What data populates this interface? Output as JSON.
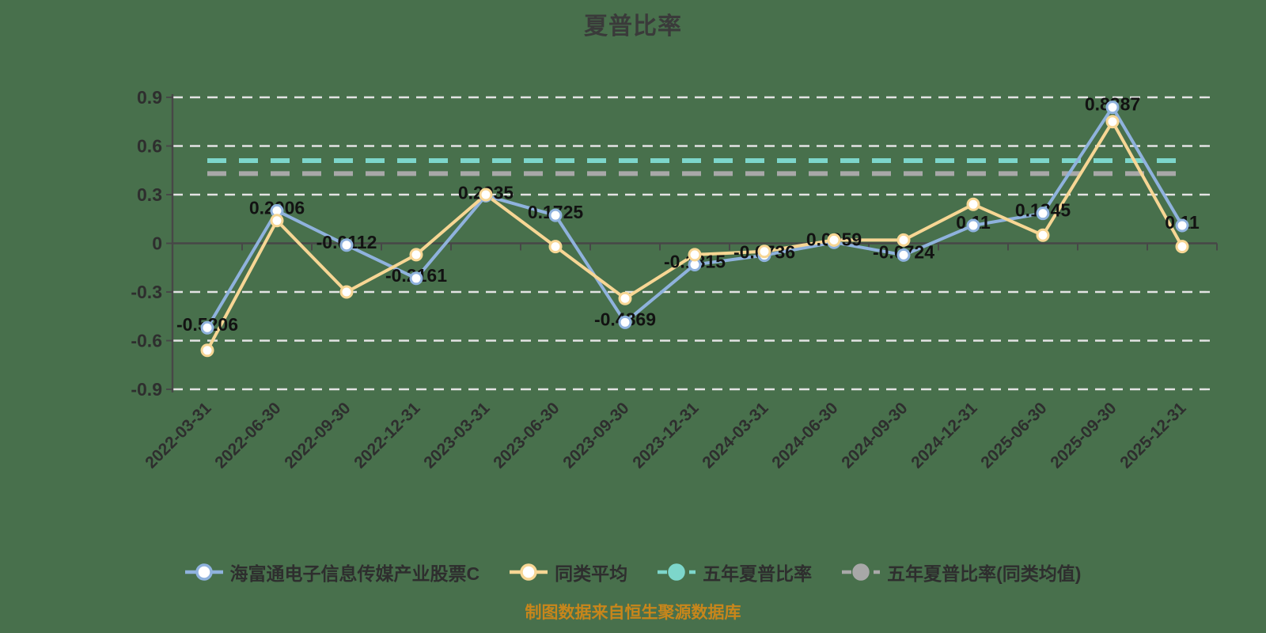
{
  "title": "夏普比率",
  "source_note": "制图数据来自恒生聚源数据库",
  "colors": {
    "background": "#48704C",
    "title_text": "#3A3A3A",
    "axis": "#474747",
    "grid": "#E3E3E3",
    "data_label": "#121212",
    "source_text": "#C8861B",
    "fund_line": "#8FB2DD",
    "peer_line": "#F7D694",
    "five_year_line": "#7DD6CB",
    "five_year_peer_line": "#A8A8A8"
  },
  "chart_data": {
    "type": "line",
    "title": "夏普比率",
    "categories": [
      "2022-03-31",
      "2022-06-30",
      "2022-09-30",
      "2022-12-31",
      "2023-03-31",
      "2023-06-30",
      "2023-09-30",
      "2023-12-31",
      "2024-03-31",
      "2024-06-30",
      "2024-09-30",
      "2024-12-31",
      "2025-06-30",
      "2025-09-30",
      "2025-12-31"
    ],
    "series": [
      {
        "name": "海富通电子信息传媒产业股票C",
        "type": "line",
        "style": "solid",
        "marker": "hollow-circle",
        "color": "#8FB2DD",
        "values": [
          -0.5206,
          0.2006,
          -0.0112,
          -0.2161,
          0.2935,
          0.1725,
          -0.4869,
          -0.1315,
          -0.0736,
          0.0059,
          -0.0724,
          0.11,
          0.1845,
          0.8387,
          0.11
        ],
        "labels": [
          "-0.5206",
          "0.2006",
          "-0.0112",
          "-0.2161",
          "0.2935",
          "0.1725",
          "-0.4869",
          "-0.1315",
          "-0.0736",
          "0.0059",
          "-0.0724",
          "0.11",
          "0.1845",
          "0.8387",
          "0.11"
        ],
        "show_labels": true
      },
      {
        "name": "同类平均",
        "type": "line",
        "style": "solid",
        "marker": "hollow-circle",
        "color": "#F7D694",
        "values": [
          -0.66,
          0.14,
          -0.3,
          -0.07,
          0.3,
          -0.02,
          -0.34,
          -0.07,
          -0.05,
          0.02,
          0.02,
          0.24,
          0.05,
          0.75,
          -0.02
        ],
        "show_labels": false
      },
      {
        "name": "五年夏普比率",
        "type": "constant-line",
        "style": "dashed",
        "marker": "filled-circle",
        "color": "#7DD6CB",
        "constant": 0.51
      },
      {
        "name": "五年夏普比率(同类均值)",
        "type": "constant-line",
        "style": "dashed",
        "marker": "filled-circle",
        "color": "#A8A8A8",
        "constant": 0.43
      }
    ],
    "ylim": [
      -0.9,
      0.9
    ],
    "ytick_step": 0.3,
    "yticks": [
      "0.9",
      "0.6",
      "0.3",
      "0",
      "-0.3",
      "-0.6",
      "-0.9"
    ],
    "grid": "horizontal dashed lines, solid zero axis",
    "x_label_rotation": 45,
    "legend_position": "bottom"
  }
}
